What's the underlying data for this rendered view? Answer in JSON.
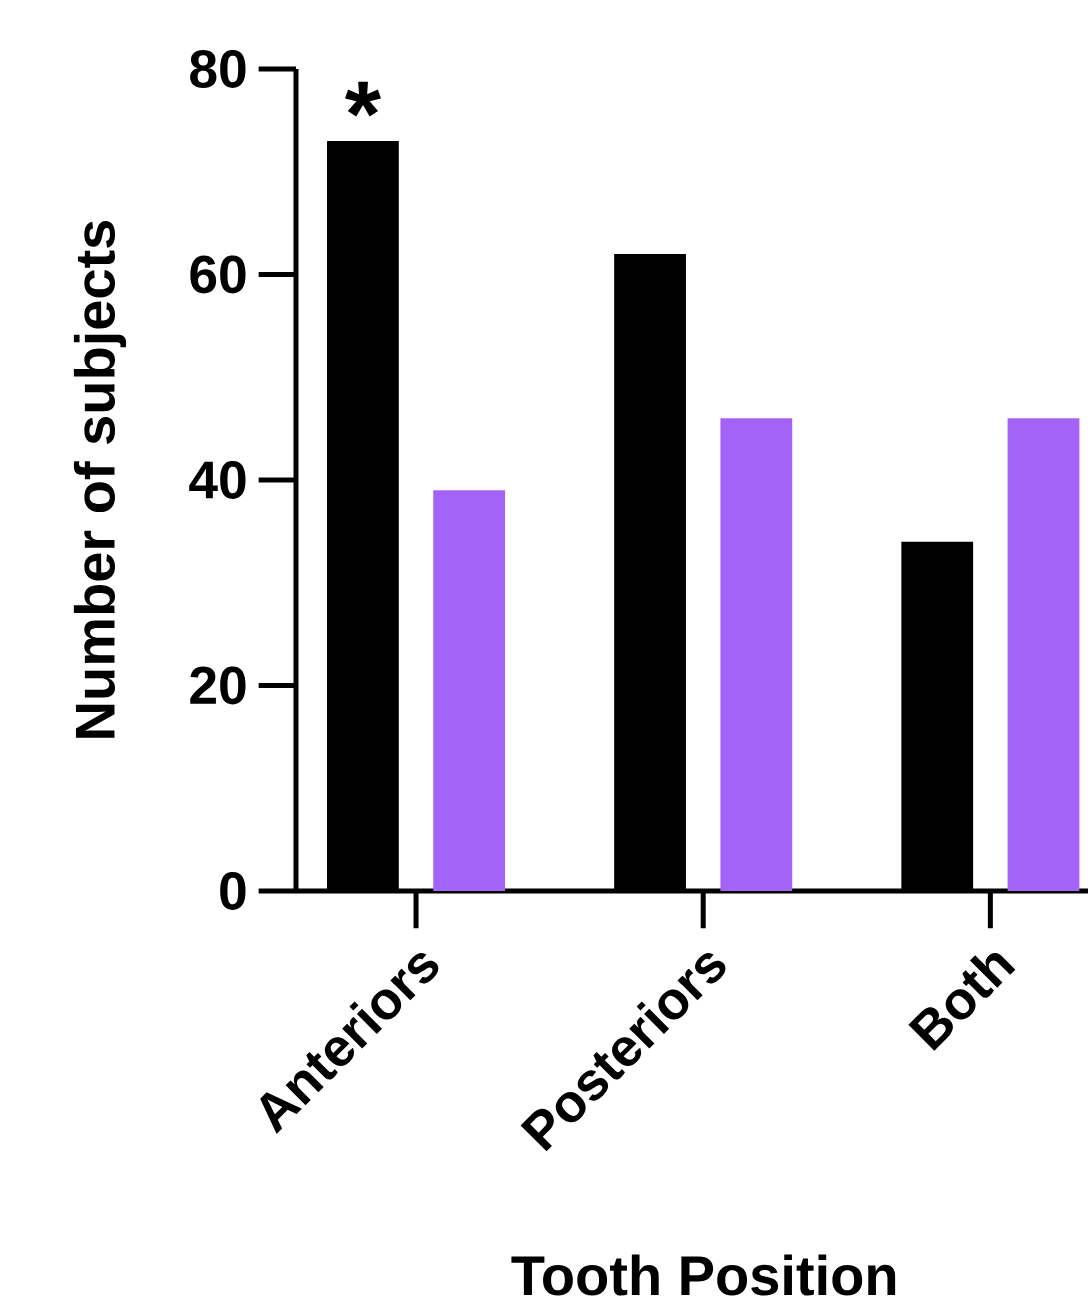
{
  "chart_data": {
    "type": "bar",
    "xlabel": "Tooth Position",
    "ylabel": "Number of subjects",
    "categories": [
      "Anteriors",
      "Posteriors",
      "Both"
    ],
    "series": [
      {
        "color": "#000000",
        "values": [
          73,
          62,
          34
        ]
      },
      {
        "color": "#a463f7",
        "values": [
          39,
          46,
          46
        ]
      }
    ],
    "ylim": [
      0,
      80
    ],
    "yticks": [
      0,
      20,
      40,
      60,
      80
    ],
    "annotations": [
      {
        "text": "*",
        "x": "Anteriors",
        "y": 73
      }
    ],
    "grid": false
  }
}
